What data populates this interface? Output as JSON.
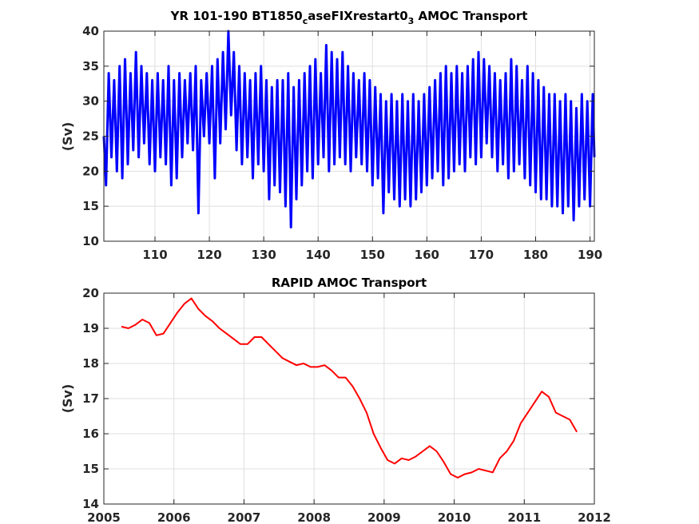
{
  "chart_data": [
    {
      "type": "line",
      "title_main": "YR 101-190 BT1850",
      "title_sub1": "c",
      "title_mid": "aseFIXrestart0",
      "title_sub2": "3",
      "title_end": " AMOC Transport",
      "ylabel": "(Sv)",
      "xlim": [
        100.6,
        190.8
      ],
      "ylim": [
        10,
        40
      ],
      "xticks": [
        110,
        120,
        130,
        140,
        150,
        160,
        170,
        180,
        190
      ],
      "yticks": [
        10,
        15,
        20,
        25,
        30,
        35,
        40
      ],
      "grid": true,
      "color": "#0000ff",
      "series": [
        {
          "x": [
            100.6,
            101.0,
            101.5,
            102.0,
            102.5,
            103.0,
            103.5,
            104.0,
            104.5,
            105.0,
            105.5,
            106.0,
            106.5,
            107.0,
            107.5,
            108.0,
            108.5,
            109.0,
            109.5,
            110.0,
            110.5,
            111.0,
            111.5,
            112.0,
            112.5,
            113.0,
            113.5,
            114.0,
            114.5,
            115.0,
            115.5,
            116.0,
            116.5,
            117.0,
            117.5,
            118.0,
            118.5,
            119.0,
            119.5,
            120.0,
            120.5,
            121.0,
            121.5,
            122.0,
            122.5,
            123.0,
            123.5,
            124.0,
            124.5,
            125.0,
            125.5,
            126.0,
            126.5,
            127.0,
            127.5,
            128.0,
            128.5,
            129.0,
            129.5,
            130.0,
            130.5,
            131.0,
            131.5,
            132.0,
            132.5,
            133.0,
            133.5,
            134.0,
            134.5,
            135.0,
            135.5,
            136.0,
            136.5,
            137.0,
            137.5,
            138.0,
            138.5,
            139.0,
            139.5,
            140.0,
            140.5,
            141.0,
            141.5,
            142.0,
            142.5,
            143.0,
            143.5,
            144.0,
            144.5,
            145.0,
            145.5,
            146.0,
            146.5,
            147.0,
            147.5,
            148.0,
            148.5,
            149.0,
            149.5,
            150.0,
            150.5,
            151.0,
            151.5,
            152.0,
            152.5,
            153.0,
            153.5,
            154.0,
            154.5,
            155.0,
            155.5,
            156.0,
            156.5,
            157.0,
            157.5,
            158.0,
            158.5,
            159.0,
            159.5,
            160.0,
            160.5,
            161.0,
            161.5,
            162.0,
            162.5,
            163.0,
            163.5,
            164.0,
            164.5,
            165.0,
            165.5,
            166.0,
            166.5,
            167.0,
            167.5,
            168.0,
            168.5,
            169.0,
            169.5,
            170.0,
            170.5,
            171.0,
            171.5,
            172.0,
            172.5,
            173.0,
            173.5,
            174.0,
            174.5,
            175.0,
            175.5,
            176.0,
            176.5,
            177.0,
            177.5,
            178.0,
            178.5,
            179.0,
            179.5,
            180.0,
            180.5,
            181.0,
            181.5,
            182.0,
            182.5,
            183.0,
            183.5,
            184.0,
            184.5,
            185.0,
            185.5,
            186.0,
            186.5,
            187.0,
            187.5,
            188.0,
            188.5,
            189.0,
            189.5,
            190.0,
            190.5,
            190.8
          ],
          "y": [
            25,
            18,
            34,
            22,
            33,
            20,
            35,
            19,
            36,
            21,
            34,
            23,
            37,
            22,
            35,
            24,
            34,
            21,
            33,
            20,
            34,
            22,
            33,
            21,
            35,
            18,
            33,
            19,
            34,
            22,
            33,
            24,
            34,
            23,
            35,
            14,
            33,
            25,
            34,
            24,
            35,
            19,
            36,
            24,
            37,
            26,
            40,
            28,
            37,
            23,
            35,
            21,
            34,
            22,
            33,
            19,
            34,
            21,
            35,
            20,
            33,
            16,
            32,
            18,
            33,
            17,
            33,
            15,
            34,
            12,
            32,
            16,
            33,
            18,
            34,
            20,
            35,
            19,
            36,
            21,
            34,
            22,
            38,
            20,
            37,
            21,
            36,
            22,
            37,
            21,
            35,
            20,
            34,
            22,
            33,
            21,
            34,
            20,
            33,
            18,
            32,
            19,
            31,
            14,
            30,
            17,
            31,
            16,
            30,
            15,
            31,
            16,
            30,
            15,
            31,
            16,
            30,
            17,
            31,
            18,
            32,
            19,
            33,
            20,
            34,
            18,
            35,
            19,
            34,
            20,
            35,
            21,
            34,
            20,
            35,
            22,
            36,
            21,
            37,
            22,
            36,
            24,
            35,
            22,
            34,
            20,
            33,
            21,
            34,
            19,
            36,
            20,
            35,
            21,
            33,
            19,
            35,
            18,
            34,
            17,
            33,
            16,
            32,
            16,
            31,
            15,
            31,
            15,
            30,
            14,
            31,
            15,
            30,
            13,
            29,
            15,
            31,
            16,
            30,
            15,
            31,
            22
          ]
        }
      ]
    },
    {
      "type": "line",
      "title": "RAPID AMOC Transport",
      "ylabel": "(Sv)",
      "xlim": [
        2005,
        2012
      ],
      "ylim": [
        14,
        20
      ],
      "xticks": [
        2005,
        2006,
        2007,
        2008,
        2009,
        2010,
        2011,
        2012
      ],
      "yticks": [
        14,
        15,
        16,
        17,
        18,
        19,
        20
      ],
      "grid": true,
      "color": "#ff0000",
      "series": [
        {
          "x": [
            2005.25,
            2005.35,
            2005.45,
            2005.55,
            2005.65,
            2005.75,
            2005.85,
            2005.95,
            2006.05,
            2006.15,
            2006.25,
            2006.35,
            2006.45,
            2006.55,
            2006.65,
            2006.75,
            2006.85,
            2006.95,
            2007.05,
            2007.15,
            2007.25,
            2007.35,
            2007.45,
            2007.55,
            2007.65,
            2007.75,
            2007.85,
            2007.95,
            2008.05,
            2008.15,
            2008.25,
            2008.35,
            2008.45,
            2008.55,
            2008.65,
            2008.75,
            2008.85,
            2008.95,
            2009.05,
            2009.15,
            2009.25,
            2009.35,
            2009.45,
            2009.55,
            2009.65,
            2009.75,
            2009.85,
            2009.95,
            2010.05,
            2010.15,
            2010.25,
            2010.35,
            2010.45,
            2010.55,
            2010.65,
            2010.75,
            2010.85,
            2010.95,
            2011.05,
            2011.15,
            2011.25,
            2011.35,
            2011.45,
            2011.55,
            2011.65,
            2011.75
          ],
          "y": [
            19.05,
            19.0,
            19.1,
            19.25,
            19.15,
            18.8,
            18.85,
            19.15,
            19.45,
            19.7,
            19.85,
            19.55,
            19.35,
            19.2,
            19.0,
            18.85,
            18.7,
            18.55,
            18.55,
            18.75,
            18.75,
            18.55,
            18.35,
            18.15,
            18.05,
            17.95,
            18.0,
            17.9,
            17.9,
            17.95,
            17.8,
            17.6,
            17.6,
            17.35,
            17.0,
            16.6,
            16.0,
            15.6,
            15.25,
            15.15,
            15.3,
            15.25,
            15.35,
            15.5,
            15.65,
            15.5,
            15.2,
            14.85,
            14.75,
            14.85,
            14.9,
            15.0,
            14.95,
            14.9,
            15.3,
            15.5,
            15.8,
            16.3,
            16.6,
            16.9,
            17.2,
            17.05,
            16.6,
            16.5,
            16.4,
            16.05
          ]
        }
      ]
    }
  ]
}
